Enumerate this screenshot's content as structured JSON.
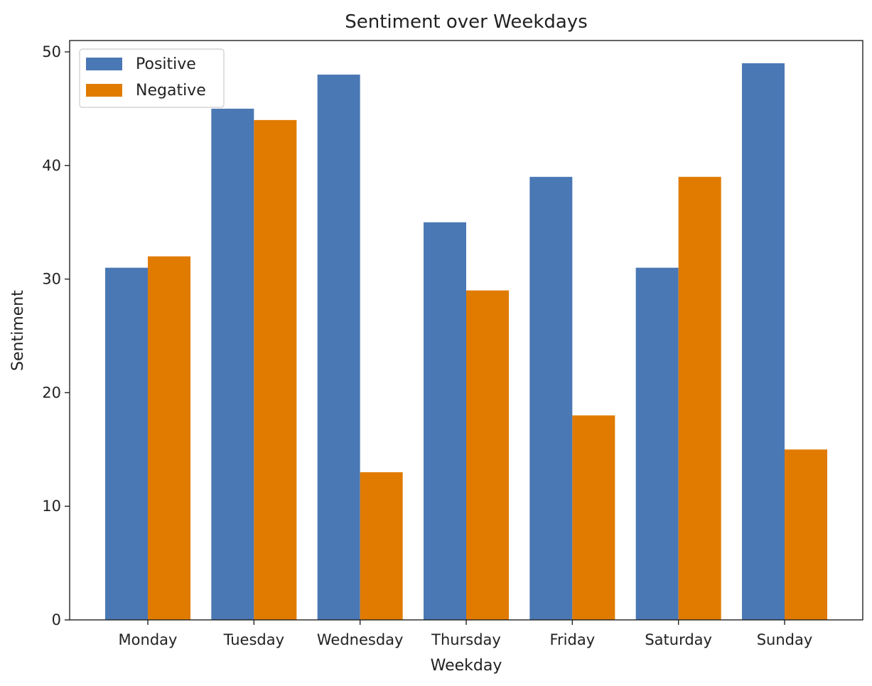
{
  "chart_data": {
    "type": "bar",
    "title": "Sentiment over Weekdays",
    "xlabel": "Weekday",
    "ylabel": "Sentiment",
    "categories": [
      "Monday",
      "Tuesday",
      "Wednesday",
      "Thursday",
      "Friday",
      "Saturday",
      "Sunday"
    ],
    "series": [
      {
        "name": "Positive",
        "color": "#4a78b4",
        "values": [
          31,
          45,
          48,
          35,
          39,
          31,
          49
        ]
      },
      {
        "name": "Negative",
        "color": "#e07b00",
        "values": [
          32,
          44,
          13,
          29,
          18,
          39,
          15
        ]
      }
    ],
    "ylim": [
      0,
      51
    ],
    "yticks": [
      0,
      10,
      20,
      30,
      40,
      50
    ],
    "grid": false,
    "legend_position": "top-left"
  }
}
